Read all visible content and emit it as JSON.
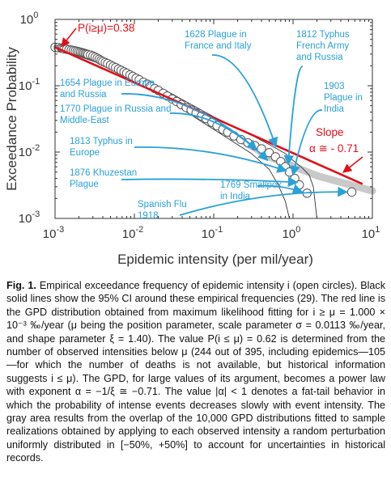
{
  "chart_data": {
    "type": "scatter",
    "xscale": "log",
    "yscale": "log",
    "xlim": [
      0.001,
      10
    ],
    "ylim": [
      0.001,
      1
    ],
    "xlabel": "Epidemic intensity (per mil/year)",
    "ylabel": "Exceedance Probability",
    "x_ticks": [
      {
        "value": 0.001,
        "base": "10",
        "exp": "-3"
      },
      {
        "value": 0.01,
        "base": "10",
        "exp": "-2"
      },
      {
        "value": 0.1,
        "base": "10",
        "exp": "-1"
      },
      {
        "value": 1,
        "base": "10",
        "exp": "0"
      },
      {
        "value": 10,
        "base": "10",
        "exp": "1"
      }
    ],
    "y_ticks": [
      {
        "value": 0.001,
        "base": "10",
        "exp": "-3"
      },
      {
        "value": 0.01,
        "base": "10",
        "exp": "-2"
      },
      {
        "value": 0.1,
        "base": "10",
        "exp": "-1"
      },
      {
        "value": 1,
        "base": "10",
        "exp": "0"
      }
    ],
    "points": [
      [
        0.001,
        0.38
      ],
      [
        0.0011,
        0.375
      ],
      [
        0.0012,
        0.37
      ],
      [
        0.00125,
        0.365
      ],
      [
        0.0013,
        0.36
      ],
      [
        0.0014,
        0.355
      ],
      [
        0.0015,
        0.35
      ],
      [
        0.0016,
        0.345
      ],
      [
        0.0017,
        0.34
      ],
      [
        0.0018,
        0.335
      ],
      [
        0.0019,
        0.33
      ],
      [
        0.002,
        0.325
      ],
      [
        0.0021,
        0.32
      ],
      [
        0.0022,
        0.315
      ],
      [
        0.0023,
        0.31
      ],
      [
        0.0024,
        0.305
      ],
      [
        0.0025,
        0.3
      ],
      [
        0.0026,
        0.295
      ],
      [
        0.0028,
        0.29
      ],
      [
        0.003,
        0.28
      ],
      [
        0.0032,
        0.27
      ],
      [
        0.0034,
        0.26
      ],
      [
        0.0036,
        0.25
      ],
      [
        0.0038,
        0.24
      ],
      [
        0.004,
        0.232
      ],
      [
        0.0043,
        0.224
      ],
      [
        0.0046,
        0.216
      ],
      [
        0.005,
        0.205
      ],
      [
        0.0054,
        0.196
      ],
      [
        0.0058,
        0.188
      ],
      [
        0.0063,
        0.178
      ],
      [
        0.0068,
        0.17
      ],
      [
        0.0074,
        0.162
      ],
      [
        0.008,
        0.155
      ],
      [
        0.0088,
        0.146
      ],
      [
        0.0095,
        0.139
      ],
      [
        0.0105,
        0.13
      ],
      [
        0.0115,
        0.123
      ],
      [
        0.013,
        0.113
      ],
      [
        0.0145,
        0.106
      ],
      [
        0.016,
        0.099
      ],
      [
        0.018,
        0.091
      ],
      [
        0.02,
        0.085
      ],
      [
        0.023,
        0.077
      ],
      [
        0.026,
        0.07
      ],
      [
        0.03,
        0.063
      ],
      [
        0.034,
        0.058
      ],
      [
        0.039,
        0.052
      ],
      [
        0.045,
        0.047
      ],
      [
        0.052,
        0.043
      ],
      [
        0.06,
        0.039
      ],
      [
        0.07,
        0.035
      ],
      [
        0.08,
        0.032
      ],
      [
        0.095,
        0.028
      ],
      [
        0.11,
        0.025
      ],
      [
        0.13,
        0.022
      ],
      [
        0.15,
        0.02
      ],
      [
        0.18,
        0.0175
      ],
      [
        0.22,
        0.0155
      ],
      [
        0.27,
        0.0138
      ],
      [
        0.33,
        0.0125
      ],
      [
        0.4,
        0.0112
      ],
      [
        0.5,
        0.0098
      ],
      [
        0.6,
        0.0085
      ],
      [
        0.7,
        0.0072
      ],
      [
        0.8,
        0.006
      ],
      [
        0.9,
        0.005
      ],
      [
        1.05,
        0.004
      ],
      [
        1.2,
        0.0032
      ],
      [
        1.5,
        0.0024
      ],
      [
        5.5,
        0.0025
      ]
    ],
    "gpd_line": [
      [
        0.001,
        0.38
      ],
      [
        7.5,
        0.0033
      ]
    ],
    "ci_lower": [
      [
        0.001,
        0.37
      ],
      [
        0.005,
        0.19
      ],
      [
        0.02,
        0.075
      ],
      [
        0.1,
        0.022
      ],
      [
        0.3,
        0.0095
      ],
      [
        0.5,
        0.0055
      ],
      [
        0.65,
        0.0032
      ],
      [
        0.8,
        0.0018
      ],
      [
        0.9,
        0.001
      ]
    ],
    "ci_upper": [
      [
        0.001,
        0.39
      ],
      [
        0.005,
        0.225
      ],
      [
        0.02,
        0.098
      ],
      [
        0.1,
        0.034
      ],
      [
        0.3,
        0.018
      ],
      [
        0.5,
        0.013
      ],
      [
        0.8,
        0.0095
      ],
      [
        1,
        0.0075
      ],
      [
        1.3,
        0.0058
      ],
      [
        1.6,
        0.0045
      ],
      [
        1.8,
        0.003
      ],
      [
        2.0,
        0.001
      ]
    ],
    "gray_band": [
      [
        0.05,
        0.045
      ],
      [
        0.5,
        0.0085
      ],
      [
        2,
        0.0044
      ],
      [
        10,
        0.0026
      ]
    ],
    "p_label": "P(i≥μ)=0.38",
    "slope_label": "Slope",
    "slope_value": "α ≅ - 0.71",
    "annotations": [
      {
        "lines": [
          "1628 Plague in",
          "France and Italy"
        ],
        "target": [
          0.7,
          0.012
        ]
      },
      {
        "lines": [
          "1812 Typhus",
          "French Army",
          "and Russia"
        ],
        "target": [
          1.0,
          0.0065
        ]
      },
      {
        "lines": [
          "1654 Plague in Europe",
          "and Russia"
        ],
        "target": [
          0.4,
          0.011
        ]
      },
      {
        "lines": [
          "1770 Plague in Russia and",
          "Middle-East"
        ],
        "target": [
          0.55,
          0.0075
        ]
      },
      {
        "lines": [
          "1903",
          "Plague in",
          "India"
        ],
        "target": [
          1.15,
          0.0045
        ]
      },
      {
        "lines": [
          "1813 Typhus in",
          "Europe"
        ],
        "target": [
          0.95,
          0.0052
        ]
      },
      {
        "lines": [
          "1876 Khuzestan",
          "Plague"
        ],
        "target": [
          1.3,
          0.0035
        ]
      },
      {
        "lines": [
          "1769 Smallpox",
          "in India"
        ],
        "target": [
          1.5,
          0.0025
        ]
      },
      {
        "lines": [
          "Spanish Flu",
          "1918"
        ],
        "target": [
          5.5,
          0.0025
        ]
      }
    ],
    "colors": {
      "points": "#555555",
      "gpd": "#e0101a",
      "band": "#bfbfbf",
      "annotation": "#2aa0d8",
      "ci": "#333333"
    }
  },
  "caption": {
    "label": "Fig. 1.",
    "text": "Empirical exceedance frequency of epidemic intensity i (open circles). Black solid lines show the 95% CI around these empirical frequencies (29). The red line is the GPD distribution obtained from maximum likelihood fitting for i ≥ μ = 1.000 × 10⁻³ ‰/year (μ being the position parameter, scale parameter σ = 0.0113 ‰/year, and shape parameter ξ = 1.40). The value P(i ≤ μ) = 0.62 is determined from the number of observed intensities below μ (244 out of 395, including epidemics—105—for which the number of deaths is not available, but historical information suggests i ≤ μ). The GPD, for large values of its argument, becomes a power law with exponent α = −1/ξ ≅ −0.71. The value |α| < 1 denotes a fat-tail behavior in which the probability of intense events decreases slowly with event intensity. The gray area results from the overlap of the 10,000 GPD distributions fitted to sample realizations obtained by applying to each observed intensity a random perturbation uniformly distributed in [−50%, +50%] to account for uncertainties in historical records."
  }
}
